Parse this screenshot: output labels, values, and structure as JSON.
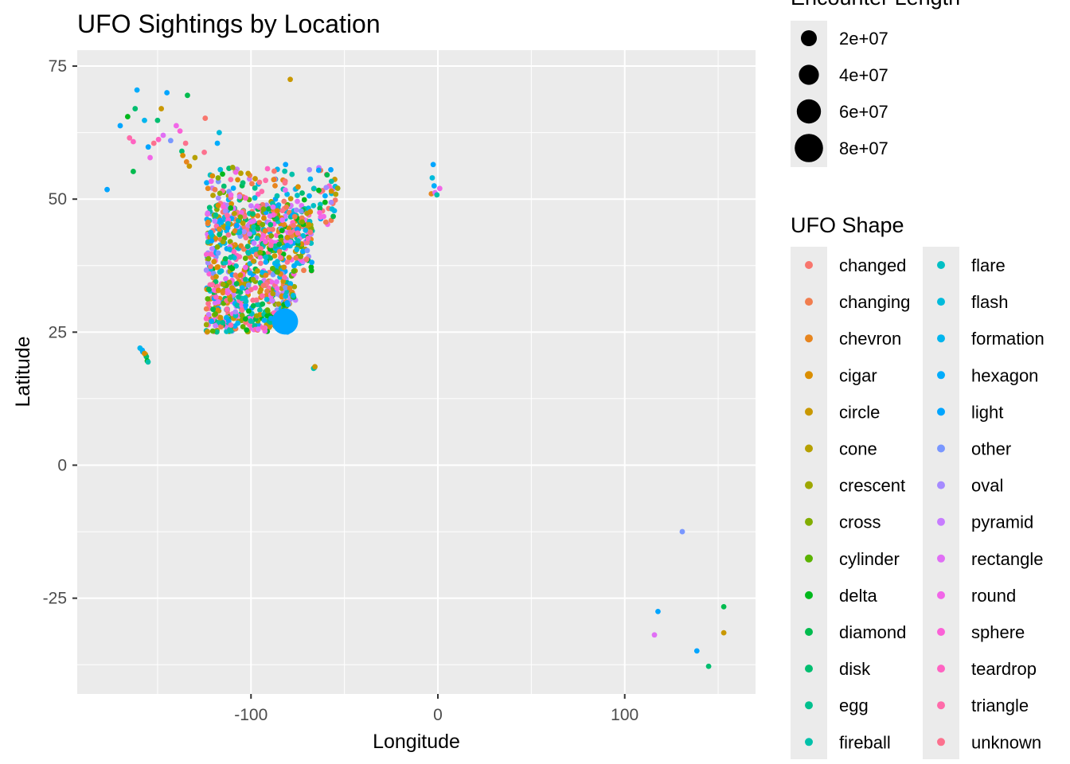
{
  "chart_data": {
    "type": "scatter",
    "title": "UFO Sightings by Location",
    "xlabel": "Longitude",
    "ylabel": "Latitude",
    "xlim": [
      -193,
      170
    ],
    "ylim": [
      -43,
      78
    ],
    "x_ticks": [
      -100,
      0,
      100
    ],
    "x_tick_labels": [
      "-100",
      "0",
      "100"
    ],
    "y_ticks": [
      -25,
      0,
      25,
      50,
      75
    ],
    "y_tick_labels": [
      "-25",
      "0",
      "25",
      "50",
      "75"
    ],
    "grid": true,
    "legend_position": "right",
    "size_legend": {
      "title": "Encounter Length",
      "values": [
        20000000,
        40000000,
        60000000,
        80000000
      ],
      "labels": [
        "2e+07",
        "4e+07",
        "6e+07",
        "8e+07"
      ]
    },
    "color_legend": {
      "title": "UFO Shape",
      "entries": [
        {
          "name": "changed",
          "color": "#F8766D"
        },
        {
          "name": "changing",
          "color": "#F17D4E"
        },
        {
          "name": "chevron",
          "color": "#E7851E"
        },
        {
          "name": "cigar",
          "color": "#DA8E00"
        },
        {
          "name": "circle",
          "color": "#C99800"
        },
        {
          "name": "cone",
          "color": "#B6A000"
        },
        {
          "name": "crescent",
          "color": "#9EA700"
        },
        {
          "name": "cross",
          "color": "#82AD00"
        },
        {
          "name": "cylinder",
          "color": "#5BB300"
        },
        {
          "name": "delta",
          "color": "#00B81C"
        },
        {
          "name": "diamond",
          "color": "#00BB4E"
        },
        {
          "name": "disk",
          "color": "#00BE70"
        },
        {
          "name": "egg",
          "color": "#00C08E"
        },
        {
          "name": "fireball",
          "color": "#00C1AA"
        },
        {
          "name": "flare",
          "color": "#00BFC4"
        },
        {
          "name": "flash",
          "color": "#00BBDB"
        },
        {
          "name": "formation",
          "color": "#00B5EE"
        },
        {
          "name": "hexagon",
          "color": "#00ACFC"
        },
        {
          "name": "light",
          "color": "#00A5FF"
        },
        {
          "name": "other",
          "color": "#7997FF"
        },
        {
          "name": "oval",
          "color": "#A58AFF"
        },
        {
          "name": "pyramid",
          "color": "#C77CFF"
        },
        {
          "name": "rectangle",
          "color": "#E06FF5"
        },
        {
          "name": "round",
          "color": "#F166E8"
        },
        {
          "name": "sphere",
          "color": "#FB61D7"
        },
        {
          "name": "teardrop",
          "color": "#FF63C2"
        },
        {
          "name": "triangle",
          "color": "#FF6BAA"
        },
        {
          "name": "unknown",
          "color": "#FC718E"
        }
      ]
    },
    "clusters": [
      {
        "region": "contiguous-us",
        "count": 900,
        "lon": [
          -124,
          -68
        ],
        "lat": [
          25,
          49
        ]
      },
      {
        "region": "southern-canada",
        "count": 160,
        "lon": [
          -124,
          -53
        ],
        "lat": [
          45,
          56
        ]
      }
    ],
    "points": [
      {
        "x": -81.8,
        "y": 27.0,
        "size": 60000000,
        "shape": "light"
      },
      {
        "x": -79.0,
        "y": 72.5,
        "size": 0,
        "shape": "circle"
      },
      {
        "x": -161.0,
        "y": 70.5,
        "size": 0,
        "shape": "hexagon"
      },
      {
        "x": -145.0,
        "y": 70.0,
        "size": 0,
        "shape": "light"
      },
      {
        "x": -134.0,
        "y": 69.5,
        "size": 0,
        "shape": "diamond"
      },
      {
        "x": -162.0,
        "y": 67.0,
        "size": 0,
        "shape": "disk"
      },
      {
        "x": -148.0,
        "y": 67.0,
        "size": 0,
        "shape": "circle"
      },
      {
        "x": -166.0,
        "y": 65.5,
        "size": 0,
        "shape": "delta"
      },
      {
        "x": -157.0,
        "y": 64.8,
        "size": 0,
        "shape": "formation"
      },
      {
        "x": -150.0,
        "y": 64.8,
        "size": 0,
        "shape": "disk"
      },
      {
        "x": -170.0,
        "y": 63.8,
        "size": 0,
        "shape": "light"
      },
      {
        "x": -140.0,
        "y": 63.8,
        "size": 0,
        "shape": "round"
      },
      {
        "x": -138.0,
        "y": 62.8,
        "size": 0,
        "shape": "sphere"
      },
      {
        "x": -117.0,
        "y": 62.5,
        "size": 0,
        "shape": "flash"
      },
      {
        "x": -149.5,
        "y": 61.2,
        "size": 0,
        "shape": "teardrop"
      },
      {
        "x": -147.0,
        "y": 62.0,
        "size": 0,
        "shape": "rectangle"
      },
      {
        "x": -143.0,
        "y": 61.0,
        "size": 0,
        "shape": "other"
      },
      {
        "x": -152.0,
        "y": 60.5,
        "size": 0,
        "shape": "unknown"
      },
      {
        "x": -165.0,
        "y": 61.5,
        "size": 0,
        "shape": "triangle"
      },
      {
        "x": -163.0,
        "y": 60.8,
        "size": 0,
        "shape": "teardrop"
      },
      {
        "x": -135.0,
        "y": 60.5,
        "size": 0,
        "shape": "unknown"
      },
      {
        "x": -155.0,
        "y": 59.8,
        "size": 0,
        "shape": "light"
      },
      {
        "x": -118.0,
        "y": 60.5,
        "size": 0,
        "shape": "hexagon"
      },
      {
        "x": -137.0,
        "y": 59.0,
        "size": 0,
        "shape": "disk"
      },
      {
        "x": -136.5,
        "y": 58.2,
        "size": 0,
        "shape": "cigar"
      },
      {
        "x": -125.0,
        "y": 58.8,
        "size": 0,
        "shape": "unknown"
      },
      {
        "x": -130.0,
        "y": 57.8,
        "size": 0,
        "shape": "cone"
      },
      {
        "x": -154.0,
        "y": 57.8,
        "size": 0,
        "shape": "round"
      },
      {
        "x": -134.5,
        "y": 57.0,
        "size": 0,
        "shape": "chevron"
      },
      {
        "x": -133.0,
        "y": 56.2,
        "size": 0,
        "shape": "circle"
      },
      {
        "x": -163.0,
        "y": 55.2,
        "size": 0,
        "shape": "diamond"
      },
      {
        "x": -177.0,
        "y": 51.8,
        "size": 0,
        "shape": "light"
      },
      {
        "x": -124.5,
        "y": 65.2,
        "size": 0,
        "shape": "changed"
      },
      {
        "x": -81.5,
        "y": 56.5,
        "size": 0,
        "shape": "light"
      },
      {
        "x": -57.0,
        "y": 51.5,
        "size": 0,
        "shape": "cigar"
      },
      {
        "x": -66.0,
        "y": 18.3,
        "size": 0,
        "shape": "other"
      },
      {
        "x": -66.5,
        "y": 18.2,
        "size": 0,
        "shape": "fireball"
      },
      {
        "x": -65.8,
        "y": 18.5,
        "size": 0,
        "shape": "circle"
      },
      {
        "x": -157.9,
        "y": 21.3,
        "size": 0,
        "shape": "light"
      },
      {
        "x": -158.2,
        "y": 21.6,
        "size": 0,
        "shape": "hexagon"
      },
      {
        "x": -156.5,
        "y": 20.8,
        "size": 0,
        "shape": "circle"
      },
      {
        "x": -156.0,
        "y": 20.4,
        "size": 0,
        "shape": "disk"
      },
      {
        "x": -155.5,
        "y": 19.6,
        "size": 0,
        "shape": "delta"
      },
      {
        "x": -155.1,
        "y": 19.4,
        "size": 0,
        "shape": "fireball"
      },
      {
        "x": -159.4,
        "y": 22.0,
        "size": 0,
        "shape": "formation"
      },
      {
        "x": -157.0,
        "y": 21.0,
        "size": 0,
        "shape": "cigar"
      },
      {
        "x": -2.5,
        "y": 56.5,
        "size": 0,
        "shape": "light"
      },
      {
        "x": -3.0,
        "y": 54.0,
        "size": 0,
        "shape": "flash"
      },
      {
        "x": -2.0,
        "y": 52.5,
        "size": 0,
        "shape": "hexagon"
      },
      {
        "x": 1.0,
        "y": 52.0,
        "size": 0,
        "shape": "round"
      },
      {
        "x": -3.5,
        "y": 51.0,
        "size": 0,
        "shape": "chevron"
      },
      {
        "x": -1.5,
        "y": 51.2,
        "size": 0,
        "shape": "rectangle"
      },
      {
        "x": -0.5,
        "y": 50.8,
        "size": 0,
        "shape": "fireball"
      },
      {
        "x": 130.8,
        "y": -12.5,
        "size": 0,
        "shape": "other"
      },
      {
        "x": 117.8,
        "y": -27.5,
        "size": 0,
        "shape": "light"
      },
      {
        "x": 115.9,
        "y": -31.9,
        "size": 0,
        "shape": "rectangle"
      },
      {
        "x": 153.0,
        "y": -26.6,
        "size": 0,
        "shape": "diamond"
      },
      {
        "x": 153.0,
        "y": -31.5,
        "size": 0,
        "shape": "circle"
      },
      {
        "x": 138.6,
        "y": -34.9,
        "size": 0,
        "shape": "light"
      },
      {
        "x": 144.9,
        "y": -37.8,
        "size": 0,
        "shape": "disk"
      }
    ]
  }
}
